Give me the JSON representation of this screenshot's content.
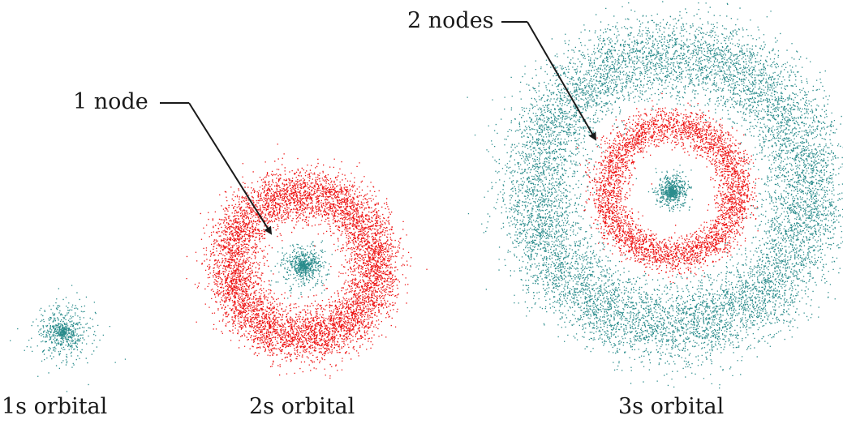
{
  "colors": {
    "positive_phase": "#2a8c8c",
    "negative_phase": "#ee1111",
    "arrow": "#1a1a1a",
    "text": "#1a1a1a"
  },
  "orbitals": [
    {
      "id": "1s",
      "label": "1s orbital",
      "nodes": 0,
      "shells": [
        {
          "phase": "positive",
          "r_inner": 0.0,
          "r_outer": 1.0,
          "density": 1.0
        }
      ]
    },
    {
      "id": "2s",
      "label": "2s orbital",
      "nodes": 1,
      "shells": [
        {
          "phase": "positive",
          "r_inner": 0.0,
          "r_outer": 0.25,
          "density": 0.9
        },
        {
          "phase": "negative",
          "r_inner": 0.5,
          "r_outer": 1.0,
          "density": 1.0
        }
      ]
    },
    {
      "id": "3s",
      "label": "3s orbital",
      "nodes": 2,
      "shells": [
        {
          "phase": "positive",
          "r_inner": 0.0,
          "r_outer": 0.1,
          "density": 0.9
        },
        {
          "phase": "negative",
          "r_inner": 0.28,
          "r_outer": 0.47,
          "density": 1.0
        },
        {
          "phase": "positive",
          "r_inner": 0.57,
          "r_outer": 1.0,
          "density": 0.85
        }
      ]
    }
  ],
  "annotations": [
    {
      "id": "node1",
      "text": "1 node",
      "points_to": "2s"
    },
    {
      "id": "node2",
      "text": "2 nodes",
      "points_to": "3s"
    }
  ]
}
